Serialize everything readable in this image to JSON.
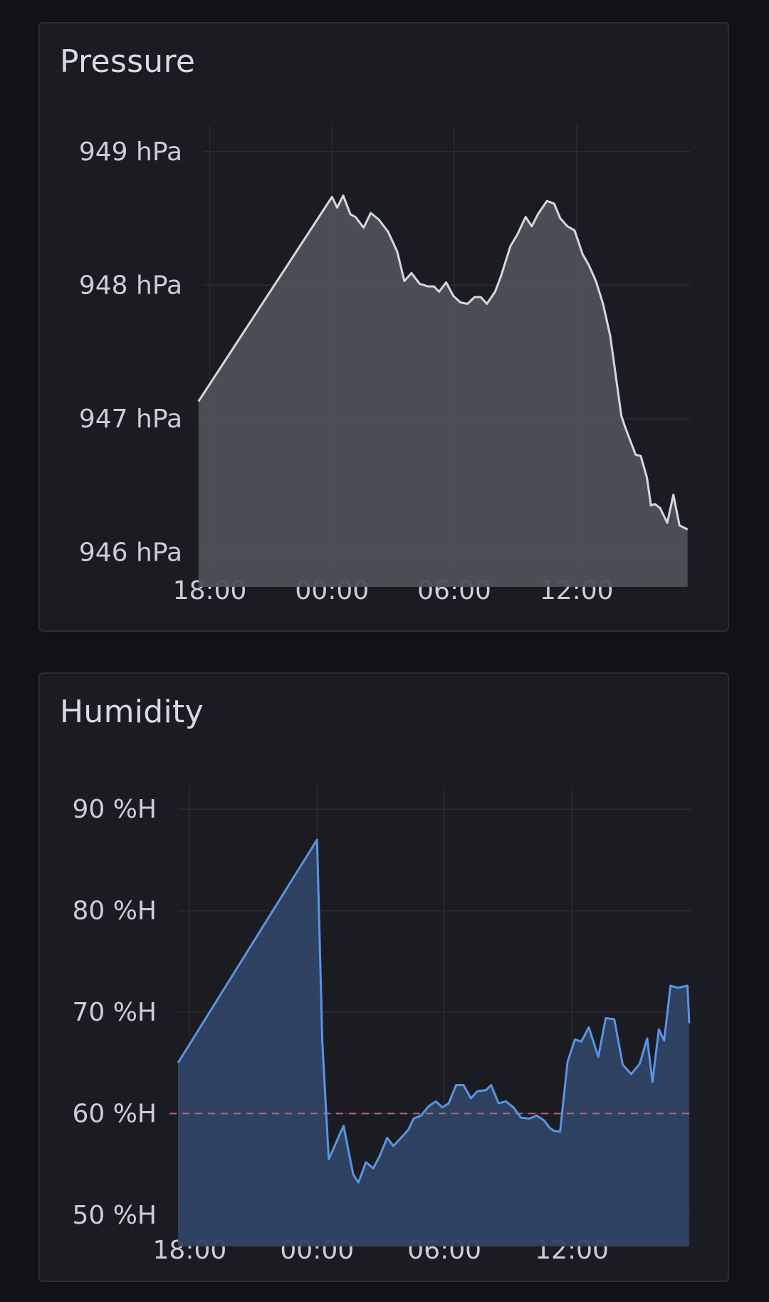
{
  "chart_data": [
    {
      "type": "area",
      "title": "Pressure",
      "unit": "hPa",
      "xlabel": "",
      "ylabel": "",
      "ylim": [
        945.9,
        949.1
      ],
      "y_ticks": [
        {
          "value": 949,
          "label": "949 hPa"
        },
        {
          "value": 948,
          "label": "948 hPa"
        },
        {
          "value": 947,
          "label": "947 hPa"
        },
        {
          "value": 946,
          "label": "946 hPa"
        }
      ],
      "x_range_hours": [
        -6.3,
        17.6
      ],
      "x_ticks": [
        {
          "value": -6,
          "label": "18:00"
        },
        {
          "value": 0,
          "label": "00:00"
        },
        {
          "value": 6,
          "label": "06:00"
        },
        {
          "value": 12,
          "label": "12:00"
        }
      ],
      "grid": true,
      "colors": {
        "line": "#d6d6de",
        "fill": "#4e5058"
      },
      "series": [
        {
          "x": [
            -6.55,
            0.0,
            0.25,
            0.55,
            0.9,
            1.15,
            1.55,
            1.9,
            2.3,
            2.75,
            3.2,
            3.55,
            3.9,
            4.3,
            4.7,
            5.0,
            5.25,
            5.6,
            5.95,
            6.3,
            6.65,
            7.0,
            7.3,
            7.6,
            8.0,
            8.3,
            8.75,
            9.1,
            9.5,
            9.8,
            10.1,
            10.55,
            10.9,
            11.2,
            11.55,
            11.9,
            12.3,
            12.6,
            12.95,
            13.3,
            13.65,
            14.2,
            14.4,
            14.9,
            15.15,
            15.45,
            15.65,
            15.85,
            16.1,
            16.45,
            16.75,
            17.05,
            17.45
          ],
          "y": [
            947.13,
            948.66,
            948.58,
            948.67,
            948.53,
            948.51,
            948.43,
            948.54,
            948.49,
            948.4,
            948.25,
            948.03,
            948.09,
            948.01,
            947.99,
            947.99,
            947.95,
            948.02,
            947.92,
            947.87,
            947.86,
            947.91,
            947.91,
            947.86,
            947.95,
            948.07,
            948.29,
            948.38,
            948.51,
            948.44,
            948.53,
            948.63,
            948.61,
            948.5,
            948.44,
            948.41,
            948.23,
            948.15,
            948.03,
            947.86,
            947.62,
            947.02,
            946.93,
            946.73,
            946.72,
            946.56,
            946.35,
            946.36,
            946.33,
            946.22,
            946.43,
            946.2,
            946.17
          ]
        }
      ]
    },
    {
      "type": "area",
      "title": "Humidity",
      "unit": "%H",
      "xlabel": "",
      "ylabel": "",
      "ylim": [
        49.0,
        91.0
      ],
      "y_ticks": [
        {
          "value": 90,
          "label": "90 %H"
        },
        {
          "value": 80,
          "label": "80 %H"
        },
        {
          "value": 70,
          "label": "70 %H"
        },
        {
          "value": 60,
          "label": "60 %H"
        },
        {
          "value": 50,
          "label": "50 %H"
        }
      ],
      "x_range_hours": [
        -6.55,
        17.6
      ],
      "x_ticks": [
        {
          "value": -6,
          "label": "18:00"
        },
        {
          "value": 0,
          "label": "00:00"
        },
        {
          "value": 6,
          "label": "06:00"
        },
        {
          "value": 12,
          "label": "12:00"
        }
      ],
      "grid": true,
      "threshold": {
        "value": 60,
        "style": "dashed",
        "color": "#b76472"
      },
      "colors": {
        "line": "#5a93e3",
        "fill": "#2f4365"
      },
      "series": [
        {
          "x": [
            -6.55,
            0.0,
            0.25,
            0.55,
            1.25,
            1.7,
            1.95,
            2.3,
            2.65,
            2.95,
            3.3,
            3.6,
            3.95,
            4.3,
            4.55,
            4.9,
            5.25,
            5.6,
            5.9,
            6.2,
            6.55,
            6.9,
            7.25,
            7.55,
            7.95,
            8.2,
            8.55,
            8.9,
            9.25,
            9.6,
            10.0,
            10.35,
            10.7,
            10.95,
            11.15,
            11.45,
            11.8,
            12.15,
            12.45,
            12.8,
            13.25,
            13.6,
            14.0,
            14.4,
            14.8,
            15.2,
            15.55,
            15.8,
            16.1,
            16.35,
            16.65,
            17.0,
            17.45
          ],
          "y": [
            65.0,
            87.0,
            67.0,
            55.5,
            58.8,
            54.0,
            53.2,
            55.2,
            54.6,
            55.8,
            57.6,
            56.8,
            57.6,
            58.4,
            59.5,
            59.8,
            60.7,
            61.2,
            60.6,
            61.0,
            62.8,
            62.8,
            61.5,
            62.2,
            62.3,
            62.8,
            61.0,
            61.2,
            60.6,
            59.6,
            59.5,
            59.8,
            59.3,
            58.6,
            58.3,
            58.2,
            65.1,
            67.3,
            67.1,
            68.5,
            65.6,
            69.4,
            69.3,
            64.8,
            63.9,
            64.9,
            67.4,
            63.1,
            68.3,
            67.2,
            72.6,
            72.4,
            72.6
          ]
        },
        {
          "x": [
            17.45,
            17.6
          ],
          "y": [
            72.6,
            68.9
          ]
        }
      ]
    }
  ]
}
